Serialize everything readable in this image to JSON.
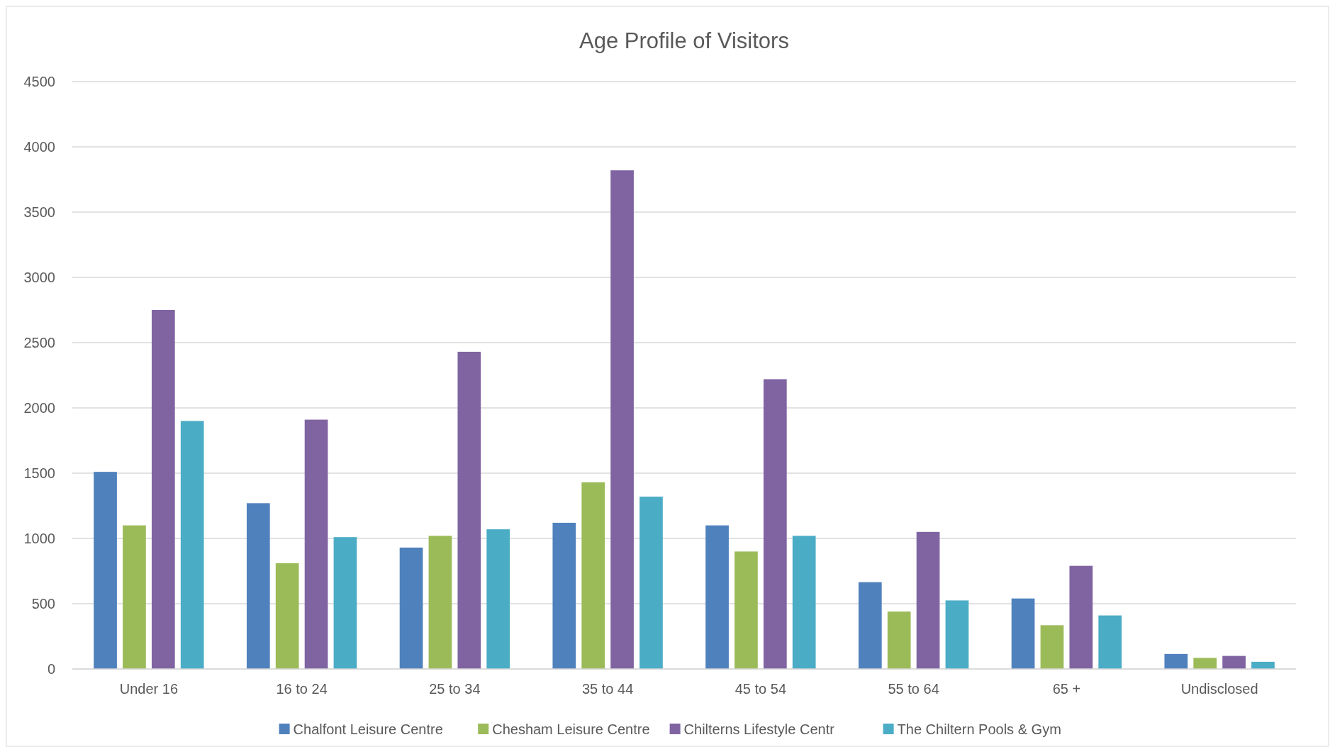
{
  "chart_data": {
    "type": "bar",
    "title": "Age Profile of Visitors",
    "categories": [
      "Under 16",
      "16 to 24",
      "25 to 34",
      "35 to 44",
      "45 to 54",
      "55 to 64",
      "65 +",
      "Undisclosed"
    ],
    "series": [
      {
        "name": "Chalfont Leisure Centre",
        "color": "#4f81bd",
        "values": [
          1510,
          1270,
          930,
          1120,
          1100,
          665,
          540,
          115
        ]
      },
      {
        "name": "Chesham Leisure Centre",
        "color": "#9bbb59",
        "values": [
          1100,
          810,
          1020,
          1430,
          900,
          440,
          335,
          85
        ]
      },
      {
        "name": "Chilterns Lifestyle Centr",
        "color": "#8064a2",
        "values": [
          2750,
          1910,
          2430,
          3820,
          2220,
          1050,
          790,
          100
        ]
      },
      {
        "name": "The Chiltern Pools & Gym",
        "color": "#4bacc6",
        "values": [
          1900,
          1010,
          1070,
          1320,
          1020,
          525,
          410,
          55
        ]
      }
    ],
    "ylim": [
      0,
      4500
    ],
    "yticks": [
      0,
      500,
      1000,
      1500,
      2000,
      2500,
      3000,
      3500,
      4000,
      4500
    ],
    "grid": "y",
    "legend": "bottom"
  }
}
